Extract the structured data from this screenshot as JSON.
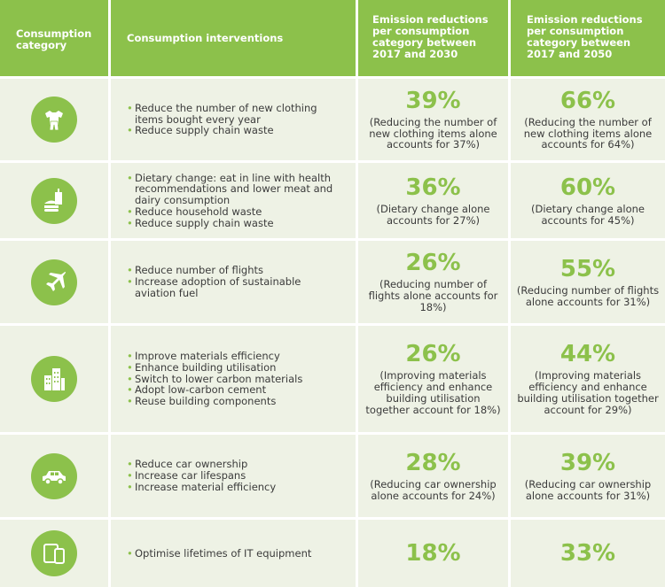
{
  "header": {
    "category": "Consumption category",
    "interventions": "Consumption interventions",
    "col2030": "Emission reductions per consumption category between 2017 and 2030",
    "col2050": "Emission reductions per consumption category between 2017 and 2050"
  },
  "accent_color": "#8cc14b",
  "row_background": "#eef2e5",
  "rows": [
    {
      "icon": "clothing-icon",
      "interventions": [
        "Reduce the number of new clothing items bought every year",
        "Reduce supply chain waste"
      ],
      "pct2030": "39%",
      "note2030": "(Reducing the number of new clothing items alone accounts for 37%)",
      "pct2050": "66%",
      "note2050": "(Reducing the number of new clothing items alone accounts for 64%)"
    },
    {
      "icon": "food-icon",
      "interventions": [
        "Dietary change: eat in line with health recommendations and lower meat and dairy consumption",
        "Reduce household waste",
        "Reduce supply chain waste"
      ],
      "pct2030": "36%",
      "note2030": "(Dietary change alone accounts for 27%)",
      "pct2050": "60%",
      "note2050": "(Dietary change alone accounts for 45%)"
    },
    {
      "icon": "airplane-icon",
      "interventions": [
        "Reduce number of flights",
        "Increase adoption of sustainable aviation fuel"
      ],
      "pct2030": "26%",
      "note2030": "(Reducing number of flights alone accounts for 18%)",
      "pct2050": "55%",
      "note2050": "(Reducing number of flights alone accounts for 31%)"
    },
    {
      "icon": "buildings-icon",
      "interventions": [
        "Improve materials efficiency",
        "Enhance building utilisation",
        "Switch to lower carbon materials",
        "Adopt low-carbon cement",
        "Reuse building components"
      ],
      "pct2030": "26%",
      "note2030": "(Improving materials efficiency and enhance building utilisation together account for 18%)",
      "pct2050": "44%",
      "note2050": "(Improving materials efficiency and enhance building utilisation together account for 29%)"
    },
    {
      "icon": "car-icon",
      "interventions": [
        "Reduce car ownership",
        "Increase car lifespans",
        "Increase material efficiency"
      ],
      "pct2030": "28%",
      "note2030": "(Reducing car ownership alone accounts for 24%)",
      "pct2050": "39%",
      "note2050": "(Reducing car ownership alone accounts for 31%)"
    },
    {
      "icon": "devices-icon",
      "interventions": [
        "Optimise lifetimes of IT equipment"
      ],
      "pct2030": "18%",
      "note2030": "",
      "pct2050": "33%",
      "note2050": ""
    }
  ]
}
